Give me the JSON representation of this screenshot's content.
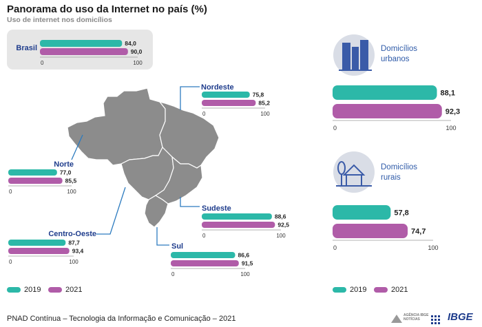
{
  "title": "Panorama do uso da Internet no país (%)",
  "subtitle": "Uso de internet nos domicílios",
  "colors": {
    "y2019": "#2cb8a8",
    "y2021": "#b05ca8",
    "region_label": "#1e3c8c",
    "map": "#8c8c8c"
  },
  "legend_left": [
    {
      "label": "2019"
    },
    {
      "label": "2021"
    }
  ],
  "legend_right": [
    {
      "label": "2019"
    },
    {
      "label": "2021"
    }
  ],
  "icons": {
    "urban": "urban-buildings-icon",
    "rural": "rural-house-tree-icon"
  },
  "urban_card_title": [
    "Domicílios",
    "urbanos"
  ],
  "rural_card_title": [
    "Domicílios",
    "rurais"
  ],
  "footer": {
    "source": "PNAD Contínua – Tecnologia da Informação e Comunicação – 2021",
    "agency": [
      "AGÊNCIA IBGE",
      "NOTÍCIAS"
    ],
    "ibge": "IBGE"
  },
  "chart_data": {
    "type": "bar",
    "series_names": [
      "2019",
      "2021"
    ],
    "xlim": [
      0,
      100
    ],
    "panels": [
      {
        "name": "Brasil",
        "values": [
          84.0,
          90.0
        ],
        "labels": [
          "84,0",
          "90,0"
        ],
        "axis_ticks": [
          "0",
          "100"
        ]
      },
      {
        "name": "Nordeste",
        "values": [
          75.8,
          85.2
        ],
        "labels": [
          "75,8",
          "85,2"
        ],
        "axis_ticks": [
          "0",
          "100"
        ]
      },
      {
        "name": "Norte",
        "values": [
          77.0,
          85.5
        ],
        "labels": [
          "77,0",
          "85,5"
        ],
        "axis_ticks": [
          "0",
          "100"
        ]
      },
      {
        "name": "Sudeste",
        "values": [
          88.6,
          92.5
        ],
        "labels": [
          "88,6",
          "92,5"
        ],
        "axis_ticks": [
          "0",
          "100"
        ]
      },
      {
        "name": "Centro-Oeste",
        "values": [
          87.7,
          93.4
        ],
        "labels": [
          "87,7",
          "93,4"
        ],
        "axis_ticks": [
          "0",
          "100"
        ]
      },
      {
        "name": "Sul",
        "values": [
          86.6,
          91.5
        ],
        "labels": [
          "86,6",
          "91,5"
        ],
        "axis_ticks": [
          "0",
          "100"
        ]
      },
      {
        "name": "",
        "values": [
          88.1,
          92.3
        ],
        "labels": [
          "88,1",
          "92,3"
        ],
        "axis_ticks": [
          "0",
          "100"
        ]
      },
      {
        "name": "",
        "values": [
          57.8,
          74.7
        ],
        "labels": [
          "57,8",
          "74,7"
        ],
        "axis_ticks": [
          "0",
          "100"
        ]
      }
    ]
  }
}
